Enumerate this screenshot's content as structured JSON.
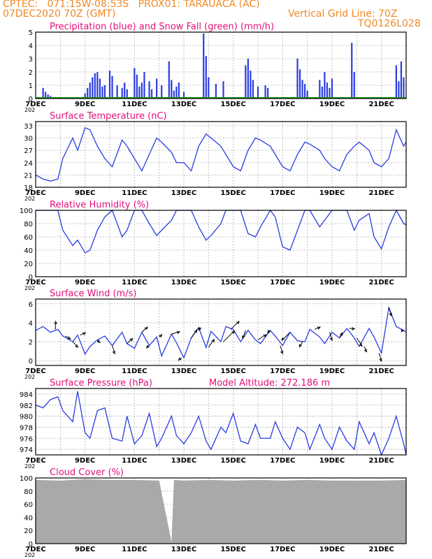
{
  "header": {
    "line1_left": "CPTEC:   071:15W-08:53S   PROX01: TARAUACA (AC)",
    "line2_left": "07DEC2020 70Z (GMT)",
    "line2_right": "Vertical Grid Line: 70Z",
    "line3_right": "TQ0126L028",
    "year_clip": "202"
  },
  "colors": {
    "header": "#f08a24",
    "title": "#e0107a",
    "series": "#2a3de0",
    "snow": "#1a9a1a",
    "cloud": "#a9a9a9",
    "wind_arrow": "#000000",
    "grid": "#9a9a9a"
  },
  "x_axis": {
    "start_day": 7,
    "end_day": 22,
    "tick_labels": [
      "7DEC",
      "9DEC",
      "11DEC",
      "13DEC",
      "15DEC",
      "17DEC",
      "19DEC",
      "21DEC"
    ]
  },
  "chart_data": [
    {
      "name": "precip",
      "type": "bar",
      "title": "Precipitation (blue) and Snow Fall (green) (mm/h)",
      "ylim": [
        0,
        5
      ],
      "yticks": [
        "0",
        "1",
        "2",
        "3",
        "4",
        "5"
      ],
      "x": [
        7.3,
        7.4,
        7.5,
        7.6,
        7.7,
        9.0,
        9.1,
        9.2,
        9.3,
        9.4,
        9.5,
        9.6,
        9.7,
        9.8,
        10.0,
        10.1,
        10.3,
        10.5,
        10.6,
        10.7,
        11.0,
        11.1,
        11.2,
        11.3,
        11.4,
        11.6,
        11.7,
        11.9,
        12.1,
        12.4,
        12.5,
        12.6,
        12.7,
        12.8,
        13.0,
        13.8,
        13.9,
        14.0,
        14.3,
        14.6,
        15.5,
        15.6,
        15.7,
        15.8,
        16.0,
        16.3,
        16.4,
        17.6,
        17.7,
        17.8,
        17.9,
        18.0,
        18.5,
        18.6,
        18.7,
        18.8,
        18.9,
        19.0,
        19.8,
        19.9,
        21.6,
        21.7,
        21.8,
        21.9
      ],
      "values": [
        0.8,
        0.5,
        0.3,
        0.2,
        0.1,
        0.4,
        0.8,
        1.2,
        1.6,
        1.9,
        2.0,
        1.5,
        0.9,
        1.0,
        2.1,
        1.7,
        1.0,
        0.8,
        1.2,
        0.7,
        2.3,
        1.8,
        0.9,
        1.2,
        2.0,
        1.3,
        0.7,
        1.5,
        1.0,
        2.8,
        1.4,
        0.6,
        0.9,
        1.2,
        0.5,
        4.9,
        3.2,
        1.6,
        1.1,
        1.3,
        2.5,
        3.0,
        2.1,
        1.4,
        0.9,
        1.0,
        0.8,
        3.0,
        2.2,
        1.4,
        1.1,
        0.6,
        1.4,
        0.9,
        2.0,
        1.2,
        0.8,
        1.5,
        4.2,
        2.0,
        2.5,
        1.3,
        2.8,
        1.6
      ],
      "snow": 0
    },
    {
      "name": "temperature",
      "type": "line",
      "title": "Surface Temperature (nC)",
      "ylim": [
        18,
        34
      ],
      "yticks": [
        "18",
        "21",
        "24",
        "27",
        "30",
        "33"
      ],
      "x": [
        7.0,
        7.3,
        7.6,
        7.9,
        8.1,
        8.5,
        8.7,
        9.0,
        9.2,
        9.5,
        9.8,
        10.1,
        10.5,
        10.7,
        11.0,
        11.3,
        11.6,
        11.9,
        12.1,
        12.5,
        12.7,
        13.0,
        13.3,
        13.6,
        13.9,
        14.1,
        14.5,
        14.7,
        15.0,
        15.3,
        15.6,
        15.9,
        16.1,
        16.5,
        16.7,
        17.0,
        17.3,
        17.6,
        17.9,
        18.1,
        18.5,
        18.7,
        19.0,
        19.3,
        19.6,
        19.9,
        20.1,
        20.5,
        20.7,
        21.0,
        21.3,
        21.6,
        21.9,
        22.0
      ],
      "values": [
        21,
        20,
        19.5,
        20,
        25,
        30,
        27,
        32.5,
        32,
        28,
        25,
        23,
        29.5,
        28,
        25,
        22,
        26,
        30,
        29,
        26.5,
        24,
        24,
        22,
        28,
        31,
        30,
        28,
        26,
        23,
        22,
        27,
        30,
        29.5,
        28,
        26,
        23,
        22,
        26,
        29,
        28.5,
        27,
        25,
        23,
        22,
        26,
        28,
        29,
        27,
        24,
        23,
        25,
        32,
        28,
        29
      ]
    },
    {
      "name": "humidity",
      "type": "line",
      "title": "Relative Humidity (%)",
      "ylim": [
        0,
        100
      ],
      "yticks": [
        "0",
        "20",
        "40",
        "60",
        "80",
        "100"
      ],
      "x": [
        7.0,
        7.3,
        7.6,
        7.9,
        8.1,
        8.5,
        8.7,
        9.0,
        9.2,
        9.5,
        9.8,
        10.1,
        10.5,
        10.7,
        11.0,
        11.3,
        11.6,
        11.9,
        12.1,
        12.5,
        12.7,
        13.0,
        13.3,
        13.6,
        13.9,
        14.1,
        14.5,
        14.7,
        15.0,
        15.3,
        15.6,
        15.9,
        16.1,
        16.5,
        16.7,
        17.0,
        17.3,
        17.6,
        17.9,
        18.1,
        18.5,
        18.7,
        19.0,
        19.3,
        19.6,
        19.9,
        20.1,
        20.5,
        20.7,
        21.0,
        21.3,
        21.6,
        21.9,
        22.0
      ],
      "values": [
        100,
        100,
        100,
        100,
        70,
        47,
        55,
        36,
        40,
        70,
        90,
        100,
        60,
        70,
        100,
        100,
        80,
        62,
        70,
        85,
        100,
        100,
        100,
        75,
        55,
        62,
        80,
        100,
        100,
        100,
        65,
        60,
        75,
        100,
        90,
        45,
        40,
        70,
        100,
        100,
        75,
        85,
        100,
        100,
        100,
        70,
        85,
        95,
        60,
        42,
        75,
        100,
        80,
        78
      ]
    },
    {
      "name": "wind",
      "type": "line",
      "title": "Surface Wind (m/s)",
      "ylim": [
        -0.5,
        6.5
      ],
      "yticks": [
        "0",
        "2",
        "4",
        "6"
      ],
      "x": [
        7.0,
        7.3,
        7.6,
        7.9,
        8.1,
        8.5,
        8.7,
        9.0,
        9.2,
        9.5,
        9.8,
        10.1,
        10.5,
        10.7,
        11.0,
        11.3,
        11.6,
        11.9,
        12.1,
        12.5,
        12.7,
        13.0,
        13.3,
        13.6,
        13.9,
        14.1,
        14.5,
        14.7,
        15.0,
        15.3,
        15.6,
        15.9,
        16.1,
        16.5,
        16.7,
        17.0,
        17.3,
        17.6,
        17.9,
        18.1,
        18.5,
        18.7,
        19.0,
        19.3,
        19.6,
        19.9,
        20.1,
        20.5,
        20.7,
        21.0,
        21.3,
        21.6,
        21.9,
        22.0
      ],
      "values": [
        3.2,
        3.6,
        3.0,
        3.3,
        2.6,
        2.0,
        2.7,
        0.7,
        1.5,
        2.2,
        2.6,
        1.6,
        3.0,
        1.8,
        1.3,
        3.0,
        1.6,
        2.5,
        0.5,
        2.8,
        1.9,
        0.3,
        2.4,
        3.5,
        1.4,
        3.1,
        2.0,
        3.6,
        3.3,
        2.0,
        3.2,
        2.2,
        1.8,
        3.2,
        2.6,
        1.6,
        3.0,
        2.1,
        2.0,
        3.3,
        2.5,
        1.8,
        3.0,
        2.4,
        3.4,
        2.4,
        1.5,
        3.4,
        2.5,
        0.8,
        5.6,
        3.6,
        3.2,
        3.0
      ],
      "arrows": {
        "x": [
          7.8,
          8.2,
          8.5,
          8.8,
          9.5,
          10.1,
          10.7,
          11.3,
          11.6,
          12.0,
          12.5,
          12.9,
          13.3,
          13.7,
          14.0,
          14.6,
          14.9,
          15.5,
          16.0,
          16.5,
          16.9,
          17.3,
          17.8,
          18.3,
          18.9,
          19.3,
          19.7,
          20.0,
          20.3,
          20.9,
          21.3,
          21.8
        ],
        "u": [
          0.0,
          1.0,
          1.0,
          1.0,
          0.5,
          0.5,
          1.0,
          1.0,
          -0.5,
          0.5,
          1.5,
          -0.5,
          1.0,
          -0.5,
          1.0,
          2.0,
          1.5,
          -0.5,
          1.5,
          -0.5,
          0.5,
          -1.5,
          -0.5,
          1.0,
          0.5,
          0.5,
          1.0,
          1.0,
          0.5,
          0.5,
          0.5,
          0.5
        ],
        "v": [
          1.5,
          -0.5,
          -1.0,
          0.5,
          -0.5,
          -1.5,
          1.0,
          1.0,
          -0.5,
          0.5,
          0.5,
          -0.5,
          1.5,
          -0.5,
          1.5,
          2.0,
          1.5,
          -1.5,
          1.0,
          -0.5,
          -1.5,
          -1.5,
          -1.0,
          0.5,
          -1.5,
          1.0,
          0.0,
          -1.5,
          -1.0,
          -1.5,
          -1.5,
          0.0
        ]
      }
    },
    {
      "name": "pressure",
      "type": "line",
      "title": "Surface Pressure (hPa)",
      "subtitle": "Model Altitude: 272.186  m",
      "ylim": [
        973,
        985
      ],
      "yticks": [
        "974",
        "976",
        "978",
        "980",
        "982",
        "984"
      ],
      "x": [
        7.0,
        7.3,
        7.6,
        7.9,
        8.1,
        8.5,
        8.7,
        9.0,
        9.2,
        9.5,
        9.8,
        10.1,
        10.5,
        10.7,
        11.0,
        11.3,
        11.6,
        11.9,
        12.1,
        12.5,
        12.7,
        13.0,
        13.3,
        13.6,
        13.9,
        14.1,
        14.5,
        14.7,
        15.0,
        15.3,
        15.6,
        15.9,
        16.1,
        16.5,
        16.7,
        17.0,
        17.3,
        17.6,
        17.9,
        18.1,
        18.5,
        18.7,
        19.0,
        19.3,
        19.6,
        19.9,
        20.1,
        20.5,
        20.7,
        21.0,
        21.3,
        21.6,
        21.9,
        22.0
      ],
      "values": [
        982,
        981.5,
        983,
        983.5,
        981,
        979,
        984.5,
        977,
        976,
        981,
        981.5,
        976,
        975.5,
        980,
        975,
        976.5,
        980.5,
        974.5,
        976,
        980,
        976.5,
        975,
        977,
        980,
        975.5,
        974,
        978,
        977,
        980.5,
        975.5,
        975,
        978.5,
        976,
        976,
        979,
        976,
        974,
        978,
        977,
        974,
        978.5,
        976,
        974,
        978,
        975.5,
        974,
        979,
        975,
        977,
        973,
        976,
        980,
        975,
        973
      ]
    },
    {
      "name": "cloud",
      "type": "area",
      "title": "Cloud Cover (%)",
      "ylim": [
        0,
        100
      ],
      "yticks": [
        "0",
        "20",
        "40",
        "60",
        "80",
        "100"
      ],
      "x": [
        7.0,
        8.0,
        9.0,
        10.0,
        11.0,
        12.0,
        12.5,
        12.6,
        13.0,
        14.0,
        15.0,
        16.0,
        17.0,
        18.0,
        19.0,
        20.0,
        21.0,
        22.0
      ],
      "values": [
        97,
        96,
        98,
        97,
        97,
        96,
        3,
        97,
        96,
        97,
        96,
        97,
        96,
        97,
        96,
        96,
        96,
        97
      ]
    }
  ]
}
